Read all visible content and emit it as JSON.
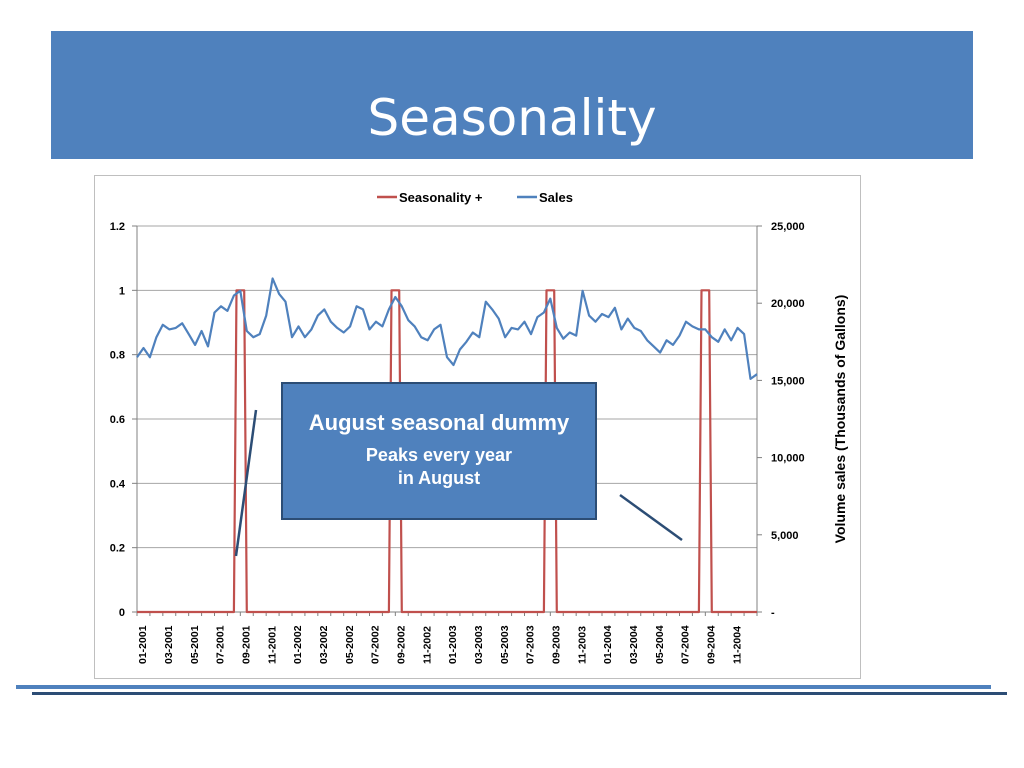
{
  "slide": {
    "title": "Seasonality"
  },
  "callout": {
    "headline": "August seasonal dummy",
    "subtext": "Peaks every year\nin August"
  },
  "colors": {
    "banner": "#4f81bd",
    "seasonality": "#c0504d",
    "sales": "#4f81bd",
    "callout_border": "#2c4d75"
  },
  "chart_data": {
    "type": "line",
    "legend": {
      "position": "top",
      "entries": [
        "Seasonality +",
        "Sales"
      ]
    },
    "x_categories": [
      "01-2001",
      "03-2001",
      "05-2001",
      "07-2001",
      "09-2001",
      "11-2001",
      "01-2002",
      "03-2002",
      "05-2002",
      "07-2002",
      "09-2002",
      "11-2002",
      "01-2003",
      "03-2003",
      "05-2003",
      "07-2003",
      "09-2003",
      "11-2003",
      "01-2004",
      "03-2004",
      "05-2004",
      "07-2004",
      "09-2004",
      "11-2004"
    ],
    "y_left": {
      "label": "",
      "range": [
        0,
        1.2
      ],
      "ticks": [
        "0",
        "0.2",
        "0.4",
        "0.6",
        "0.8",
        "1",
        "1.2"
      ]
    },
    "y_right": {
      "label": "Volume sales (Thousands of Gallons)",
      "range": [
        0,
        25000
      ],
      "ticks": [
        "-",
        "5,000",
        "10,000",
        "15,000",
        "20,000",
        "25,000"
      ]
    },
    "grid": true,
    "series": [
      {
        "name": "Seasonality +",
        "axis": "left",
        "color": "#c0504d",
        "points": [
          [
            0,
            0
          ],
          [
            7.5,
            0
          ],
          [
            7.7,
            1
          ],
          [
            8.3,
            1
          ],
          [
            8.5,
            0
          ],
          [
            19.5,
            0
          ],
          [
            19.7,
            1
          ],
          [
            20.3,
            1
          ],
          [
            20.5,
            0
          ],
          [
            31.5,
            0
          ],
          [
            31.7,
            1
          ],
          [
            32.3,
            1
          ],
          [
            32.5,
            0
          ],
          [
            43.5,
            0
          ],
          [
            43.7,
            1
          ],
          [
            44.3,
            1
          ],
          [
            44.5,
            0
          ],
          [
            48,
            0
          ]
        ]
      },
      {
        "name": "Sales",
        "axis": "right",
        "color": "#4f81bd",
        "points": [
          [
            0,
            16500
          ],
          [
            0.5,
            17100
          ],
          [
            1,
            16500
          ],
          [
            1.5,
            17800
          ],
          [
            2,
            18600
          ],
          [
            2.5,
            18300
          ],
          [
            3,
            18400
          ],
          [
            3.5,
            18700
          ],
          [
            4,
            18000
          ],
          [
            4.5,
            17300
          ],
          [
            5,
            18200
          ],
          [
            5.5,
            17200
          ],
          [
            6,
            19400
          ],
          [
            6.5,
            19800
          ],
          [
            7,
            19500
          ],
          [
            7.5,
            20500
          ],
          [
            8,
            20800
          ],
          [
            8.5,
            18200
          ],
          [
            9,
            17800
          ],
          [
            9.5,
            18000
          ],
          [
            10,
            19200
          ],
          [
            10.5,
            21600
          ],
          [
            11,
            20600
          ],
          [
            11.5,
            20100
          ],
          [
            12,
            17800
          ],
          [
            12.5,
            18500
          ],
          [
            13,
            17800
          ],
          [
            13.5,
            18300
          ],
          [
            14,
            19200
          ],
          [
            14.5,
            19600
          ],
          [
            15,
            18800
          ],
          [
            15.5,
            18400
          ],
          [
            16,
            18100
          ],
          [
            16.5,
            18500
          ],
          [
            17,
            19800
          ],
          [
            17.5,
            19600
          ],
          [
            18,
            18300
          ],
          [
            18.5,
            18800
          ],
          [
            19,
            18500
          ],
          [
            19.5,
            19600
          ],
          [
            20,
            20400
          ],
          [
            20.5,
            19800
          ],
          [
            21,
            18900
          ],
          [
            21.5,
            18500
          ],
          [
            22,
            17800
          ],
          [
            22.5,
            17600
          ],
          [
            23,
            18300
          ],
          [
            23.5,
            18600
          ],
          [
            24,
            16500
          ],
          [
            24.5,
            16000
          ],
          [
            25,
            17000
          ],
          [
            25.5,
            17500
          ],
          [
            26,
            18100
          ],
          [
            26.5,
            17800
          ],
          [
            27,
            20100
          ],
          [
            27.5,
            19600
          ],
          [
            28,
            19000
          ],
          [
            28.5,
            17800
          ],
          [
            29,
            18400
          ],
          [
            29.5,
            18300
          ],
          [
            30,
            18800
          ],
          [
            30.5,
            18000
          ],
          [
            31,
            19100
          ],
          [
            31.5,
            19400
          ],
          [
            32,
            20300
          ],
          [
            32.5,
            18400
          ],
          [
            33,
            17700
          ],
          [
            33.5,
            18100
          ],
          [
            34,
            17900
          ],
          [
            34.5,
            20800
          ],
          [
            35,
            19200
          ],
          [
            35.5,
            18800
          ],
          [
            36,
            19300
          ],
          [
            36.5,
            19100
          ],
          [
            37,
            19700
          ],
          [
            37.5,
            18300
          ],
          [
            38,
            19000
          ],
          [
            38.5,
            18400
          ],
          [
            39,
            18200
          ],
          [
            39.5,
            17600
          ],
          [
            40,
            17200
          ],
          [
            40.5,
            16800
          ],
          [
            41,
            17600
          ],
          [
            41.5,
            17300
          ],
          [
            42,
            17900
          ],
          [
            42.5,
            18800
          ],
          [
            43,
            18500
          ],
          [
            43.5,
            18300
          ],
          [
            44,
            18300
          ],
          [
            44.5,
            17800
          ],
          [
            45,
            17500
          ],
          [
            45.5,
            18300
          ],
          [
            46,
            17600
          ],
          [
            46.5,
            18400
          ],
          [
            47,
            18000
          ],
          [
            47.5,
            15100
          ],
          [
            48,
            15400
          ]
        ]
      }
    ]
  }
}
